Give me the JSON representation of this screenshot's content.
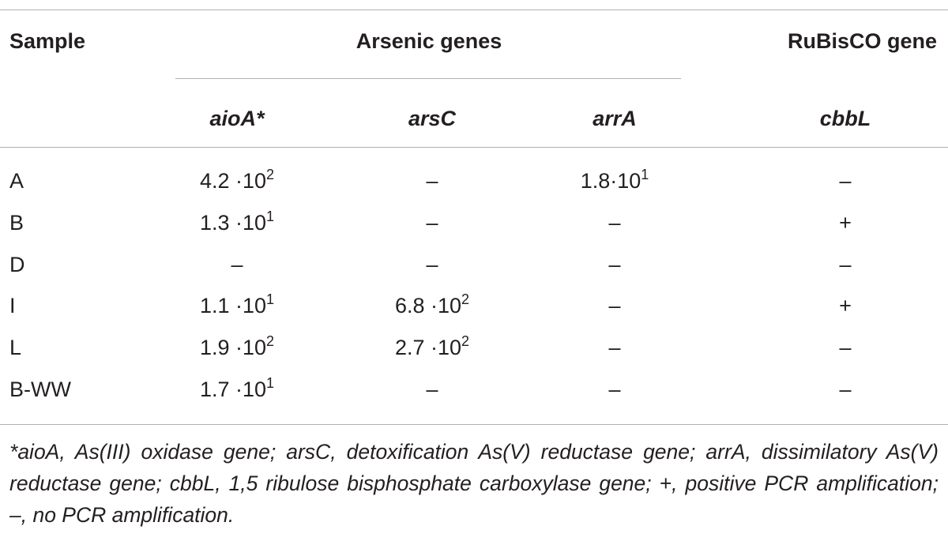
{
  "table": {
    "header": {
      "sample": "Sample",
      "group1": "Arsenic genes",
      "group2": "RuBisCO gene",
      "columns": [
        "aioA*",
        "arsC",
        "arrA",
        "cbbL"
      ]
    },
    "rows": [
      [
        "A",
        {
          "base": "4.2 ·10",
          "exp": "2"
        },
        "–",
        {
          "base": "1.8·10",
          "exp": "1"
        },
        "–"
      ],
      [
        "B",
        {
          "base": "1.3 ·10",
          "exp": "1"
        },
        "–",
        "–",
        "+"
      ],
      [
        "D",
        "–",
        "–",
        "–",
        "–"
      ],
      [
        "I",
        {
          "base": "1.1 ·10",
          "exp": "1"
        },
        {
          "base": "6.8 ·10",
          "exp": "2"
        },
        "–",
        "+"
      ],
      [
        "L",
        {
          "base": "1.9 ·10",
          "exp": "2"
        },
        {
          "base": "2.7 ·10",
          "exp": "2"
        },
        "–",
        "–"
      ],
      [
        "B-WW",
        {
          "base": "1.7 ·10",
          "exp": "1"
        },
        "–",
        "–",
        "–"
      ]
    ],
    "footnote": "*aioA, As(III) oxidase gene; arsC, detoxification As(V) reductase gene; arrA, dissimilatory As(V) reductase gene; cbbL, 1,5 ribulose bisphosphate carboxylase gene; +, positive PCR amplification; –, no PCR amplification."
  }
}
